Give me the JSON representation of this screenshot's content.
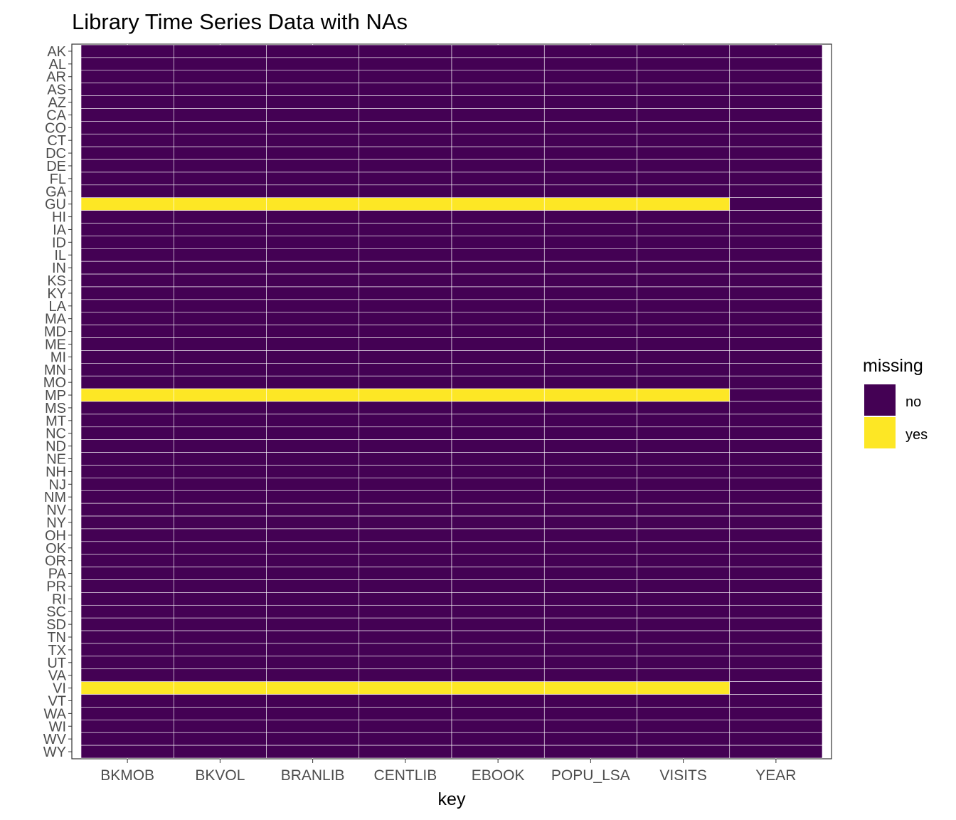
{
  "chart_data": {
    "type": "heatmap",
    "title": "Library Time Series Data with NAs",
    "xlabel": "key",
    "ylabel": "",
    "x_categories": [
      "BKMOB",
      "BKVOL",
      "BRANLIB",
      "CENTLIB",
      "EBOOK",
      "POPU_LSA",
      "VISITS",
      "YEAR"
    ],
    "y_categories": [
      "AK",
      "AL",
      "AR",
      "AS",
      "AZ",
      "CA",
      "CO",
      "CT",
      "DC",
      "DE",
      "FL",
      "GA",
      "GU",
      "HI",
      "IA",
      "ID",
      "IL",
      "IN",
      "KS",
      "KY",
      "LA",
      "MA",
      "MD",
      "ME",
      "MI",
      "MN",
      "MO",
      "MP",
      "MS",
      "MT",
      "NC",
      "ND",
      "NE",
      "NH",
      "NJ",
      "NM",
      "NV",
      "NY",
      "OH",
      "OK",
      "OR",
      "PA",
      "PR",
      "RI",
      "SC",
      "SD",
      "TN",
      "TX",
      "UT",
      "VA",
      "VI",
      "VT",
      "WA",
      "WI",
      "WV",
      "WY"
    ],
    "missing_rows": [
      "GU",
      "MP",
      "VI"
    ],
    "missing_columns": [
      "BKMOB",
      "BKVOL",
      "BRANLIB",
      "CENTLIB",
      "EBOOK",
      "POPU_LSA",
      "VISITS"
    ],
    "legend": {
      "title": "missing",
      "position": "right",
      "entries": [
        {
          "label": "no",
          "color": "#440154"
        },
        {
          "label": "yes",
          "color": "#FDE725"
        }
      ]
    }
  }
}
